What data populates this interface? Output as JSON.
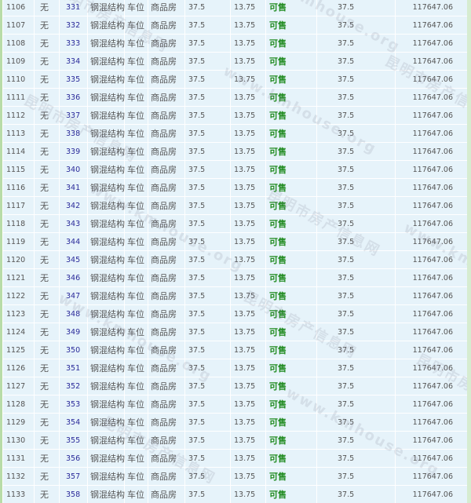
{
  "watermark": {
    "text": "昆明市房产信息网",
    "url": "www.kmhouse.org"
  },
  "colors": {
    "status_available": "#1e8a1e",
    "unit_link": "#2a2a9a",
    "row_bg": "#e6f3fa"
  },
  "rows": [
    [
      "1106",
      "无",
      "331",
      "钢混结构",
      "车位",
      "商品房",
      "37.5",
      "13.75",
      "可售",
      "37.5",
      "117647.06"
    ],
    [
      "1107",
      "无",
      "332",
      "钢混结构",
      "车位",
      "商品房",
      "37.5",
      "13.75",
      "可售",
      "37.5",
      "117647.06"
    ],
    [
      "1108",
      "无",
      "333",
      "钢混结构",
      "车位",
      "商品房",
      "37.5",
      "13.75",
      "可售",
      "37.5",
      "117647.06"
    ],
    [
      "1109",
      "无",
      "334",
      "钢混结构",
      "车位",
      "商品房",
      "37.5",
      "13.75",
      "可售",
      "37.5",
      "117647.06"
    ],
    [
      "1110",
      "无",
      "335",
      "钢混结构",
      "车位",
      "商品房",
      "37.5",
      "13.75",
      "可售",
      "37.5",
      "117647.06"
    ],
    [
      "1111",
      "无",
      "336",
      "钢混结构",
      "车位",
      "商品房",
      "37.5",
      "13.75",
      "可售",
      "37.5",
      "117647.06"
    ],
    [
      "1112",
      "无",
      "337",
      "钢混结构",
      "车位",
      "商品房",
      "37.5",
      "13.75",
      "可售",
      "37.5",
      "117647.06"
    ],
    [
      "1113",
      "无",
      "338",
      "钢混结构",
      "车位",
      "商品房",
      "37.5",
      "13.75",
      "可售",
      "37.5",
      "117647.06"
    ],
    [
      "1114",
      "无",
      "339",
      "钢混结构",
      "车位",
      "商品房",
      "37.5",
      "13.75",
      "可售",
      "37.5",
      "117647.06"
    ],
    [
      "1115",
      "无",
      "340",
      "钢混结构",
      "车位",
      "商品房",
      "37.5",
      "13.75",
      "可售",
      "37.5",
      "117647.06"
    ],
    [
      "1116",
      "无",
      "341",
      "钢混结构",
      "车位",
      "商品房",
      "37.5",
      "13.75",
      "可售",
      "37.5",
      "117647.06"
    ],
    [
      "1117",
      "无",
      "342",
      "钢混结构",
      "车位",
      "商品房",
      "37.5",
      "13.75",
      "可售",
      "37.5",
      "117647.06"
    ],
    [
      "1118",
      "无",
      "343",
      "钢混结构",
      "车位",
      "商品房",
      "37.5",
      "13.75",
      "可售",
      "37.5",
      "117647.06"
    ],
    [
      "1119",
      "无",
      "344",
      "钢混结构",
      "车位",
      "商品房",
      "37.5",
      "13.75",
      "可售",
      "37.5",
      "117647.06"
    ],
    [
      "1120",
      "无",
      "345",
      "钢混结构",
      "车位",
      "商品房",
      "37.5",
      "13.75",
      "可售",
      "37.5",
      "117647.06"
    ],
    [
      "1121",
      "无",
      "346",
      "钢混结构",
      "车位",
      "商品房",
      "37.5",
      "13.75",
      "可售",
      "37.5",
      "117647.06"
    ],
    [
      "1122",
      "无",
      "347",
      "钢混结构",
      "车位",
      "商品房",
      "37.5",
      "13.75",
      "可售",
      "37.5",
      "117647.06"
    ],
    [
      "1123",
      "无",
      "348",
      "钢混结构",
      "车位",
      "商品房",
      "37.5",
      "13.75",
      "可售",
      "37.5",
      "117647.06"
    ],
    [
      "1124",
      "无",
      "349",
      "钢混结构",
      "车位",
      "商品房",
      "37.5",
      "13.75",
      "可售",
      "37.5",
      "117647.06"
    ],
    [
      "1125",
      "无",
      "350",
      "钢混结构",
      "车位",
      "商品房",
      "37.5",
      "13.75",
      "可售",
      "37.5",
      "117647.06"
    ],
    [
      "1126",
      "无",
      "351",
      "钢混结构",
      "车位",
      "商品房",
      "37.5",
      "13.75",
      "可售",
      "37.5",
      "117647.06"
    ],
    [
      "1127",
      "无",
      "352",
      "钢混结构",
      "车位",
      "商品房",
      "37.5",
      "13.75",
      "可售",
      "37.5",
      "117647.06"
    ],
    [
      "1128",
      "无",
      "353",
      "钢混结构",
      "车位",
      "商品房",
      "37.5",
      "13.75",
      "可售",
      "37.5",
      "117647.06"
    ],
    [
      "1129",
      "无",
      "354",
      "钢混结构",
      "车位",
      "商品房",
      "37.5",
      "13.75",
      "可售",
      "37.5",
      "117647.06"
    ],
    [
      "1130",
      "无",
      "355",
      "钢混结构",
      "车位",
      "商品房",
      "37.5",
      "13.75",
      "可售",
      "37.5",
      "117647.06"
    ],
    [
      "1131",
      "无",
      "356",
      "钢混结构",
      "车位",
      "商品房",
      "37.5",
      "13.75",
      "可售",
      "37.5",
      "117647.06"
    ],
    [
      "1132",
      "无",
      "357",
      "钢混结构",
      "车位",
      "商品房",
      "37.5",
      "13.75",
      "可售",
      "37.5",
      "117647.06"
    ],
    [
      "1133",
      "无",
      "358",
      "钢混结构",
      "车位",
      "商品房",
      "37.5",
      "13.75",
      "可售",
      "37.5",
      "117647.06"
    ]
  ]
}
